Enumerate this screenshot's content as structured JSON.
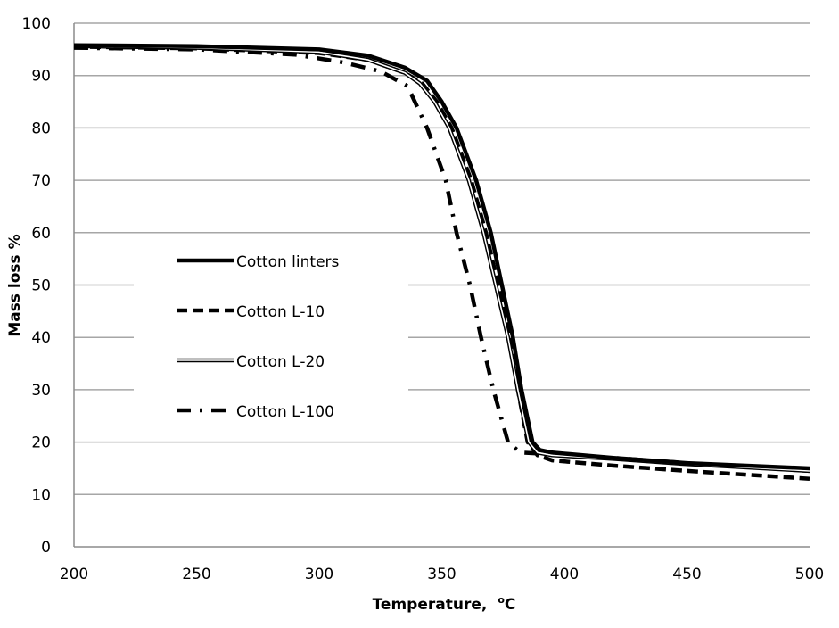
{
  "chart_data": {
    "type": "line",
    "title": "",
    "xlabel": "Temperature,",
    "xlabel_unit_sup": "o",
    "xlabel_unit": "C",
    "ylabel": "Mass loss %",
    "xlim": [
      200,
      500
    ],
    "ylim": [
      0,
      100
    ],
    "xticks": [
      200,
      250,
      300,
      350,
      400,
      450,
      500
    ],
    "yticks": [
      0,
      10,
      20,
      30,
      40,
      50,
      60,
      70,
      80,
      90,
      100
    ],
    "grid": "horizontal",
    "legend_placement": "center-left",
    "series": [
      {
        "name": "Cotton linters",
        "style": "solid-thick",
        "color": "#000000",
        "x": [
          200,
          250,
          300,
          320,
          335,
          344,
          350,
          356,
          364,
          370,
          374.5,
          379,
          382.5,
          387,
          390,
          395,
          420,
          450,
          500
        ],
        "y": [
          95.8,
          95.6,
          95,
          93.8,
          91.5,
          89,
          85,
          80,
          70,
          60,
          50,
          40,
          30,
          20,
          18.5,
          18,
          17,
          16,
          15
        ]
      },
      {
        "name": "Cotton L-10",
        "style": "dashed",
        "color": "#000000",
        "x": [
          200,
          250,
          300,
          320,
          335,
          342,
          348,
          354,
          362,
          368,
          373,
          377.5,
          381,
          385,
          389,
          395,
          420,
          450,
          500
        ],
        "y": [
          95.5,
          95.2,
          94.3,
          93,
          90.5,
          88.5,
          85,
          80,
          70,
          60,
          50,
          40,
          30,
          20,
          17.5,
          16.5,
          15.5,
          14.5,
          13
        ]
      },
      {
        "name": "Cotton L-20",
        "style": "double",
        "color": "#000000",
        "x": [
          200,
          250,
          300,
          320,
          335,
          341,
          347,
          353,
          361,
          367,
          372,
          377,
          381,
          385.5,
          389,
          395,
          420,
          450,
          500
        ],
        "y": [
          95.6,
          95.3,
          94.5,
          93,
          90.5,
          88.5,
          85,
          80,
          70,
          60,
          50,
          40,
          30,
          20,
          18,
          17.5,
          16.8,
          15.8,
          14.5
        ]
      },
      {
        "name": "Cotton L-100",
        "style": "dash-dot",
        "color": "#000000",
        "x": [
          200,
          250,
          290,
          310,
          325,
          336,
          344,
          351.6,
          356,
          361.5,
          366,
          371,
          377,
          382,
          390,
          420,
          450,
          500
        ],
        "y": [
          95.3,
          95,
          94,
          92.5,
          90.8,
          88,
          80,
          70,
          60,
          50,
          40,
          30,
          20,
          18,
          17.8,
          17,
          16,
          14.5
        ]
      }
    ]
  }
}
